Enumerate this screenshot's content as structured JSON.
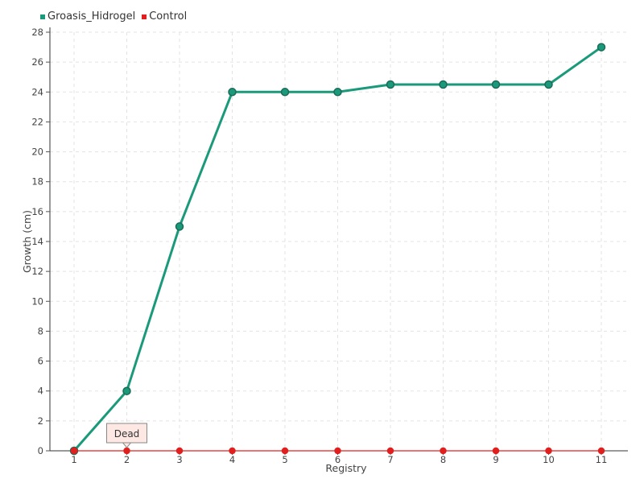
{
  "chart_data": {
    "type": "line",
    "x": [
      1,
      2,
      3,
      4,
      5,
      6,
      7,
      8,
      9,
      10,
      11
    ],
    "xlabel": "Registry",
    "ylabel": "Growth (cm)",
    "ylim": [
      0,
      28
    ],
    "yticks": [
      0,
      2,
      4,
      6,
      8,
      10,
      12,
      14,
      16,
      18,
      20,
      22,
      24,
      26,
      28
    ],
    "grid": true,
    "legend_position": "top-left",
    "series": [
      {
        "name": "Groasis_Hidrogel",
        "color": "#1a9a7a",
        "values": [
          0,
          4,
          15,
          24,
          24,
          24,
          24.5,
          24.5,
          24.5,
          24.5,
          27
        ]
      },
      {
        "name": "Control",
        "color": "#e0201f",
        "values": [
          0,
          0,
          0,
          0,
          0,
          0,
          0,
          0,
          0,
          0,
          0
        ]
      }
    ],
    "annotations": [
      {
        "text": "Dead",
        "x": 2,
        "y": 0
      }
    ]
  }
}
